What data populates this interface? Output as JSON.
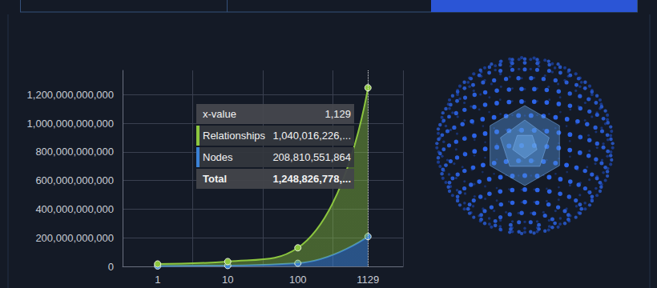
{
  "chart_data": {
    "type": "area",
    "categories": [
      "1",
      "10",
      "100",
      "1129"
    ],
    "series": [
      {
        "name": "Nodes",
        "color": "#3b82d6",
        "values": [
          3000000000,
          6000000000,
          22000000000,
          208810551864
        ]
      },
      {
        "name": "Relationships",
        "color": "#8cc63f",
        "values": [
          14000000000,
          28000000000,
          108000000000,
          1040016226400
        ]
      }
    ],
    "stacked": true,
    "ylim": [
      0,
      1370000000000
    ],
    "yticks": [
      0,
      {
        "value": 200000000000,
        "label": "200,000,000,000"
      },
      {
        "value": 400000000000,
        "label": "400,000,000,000"
      },
      {
        "value": 600000000000,
        "label": "600,000,000,000"
      },
      {
        "value": 800000000000,
        "label": "800,000,000,000"
      },
      {
        "value": 1000000000000,
        "label": "1,000,000,000,000"
      },
      {
        "value": 1200000000000,
        "label": "1,200,000,000,000"
      }
    ],
    "grid": true,
    "marker": "circle",
    "line_style": "solid",
    "tooltip": {
      "x": "1129",
      "header": [
        "x-value",
        "1,129"
      ],
      "rows": [
        {
          "name": "Relationships",
          "value": "1,040,016,226,..."
        },
        {
          "name": "Nodes",
          "value": "208,810,551,864"
        }
      ],
      "total": [
        "Total",
        "1,248,826,778,..."
      ]
    }
  }
}
